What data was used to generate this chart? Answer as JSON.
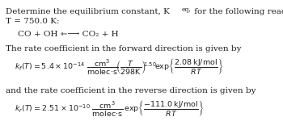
{
  "bg_color": "#ffffff",
  "text_color": "#231f20",
  "line1": "Determine the equilibrium constant, K",
  "line1_sub": "eq,",
  "line1_end": " for the following reaction at",
  "line2": "T = 750.0 K:",
  "reaction": "CO + OH ⇽⟶ CO₂ + H",
  "forward_desc": "The rate coefficient in the forward direction is given by",
  "kf_eq": "$k_f(T) = 5.4 \\times 10^{-14}\\,\\dfrac{\\mathrm{cm}^3}{\\mathrm{molec{\\cdot}s}}\\left(\\dfrac{T}{298\\mathrm{K}}\\right)^{1.50}\\!\\exp\\!\\left\\{\\dfrac{2.08\\,\\mathrm{kJ/mol}}{RT}\\right\\}$",
  "reverse_desc": "and the rate coefficient in the reverse direction is given by",
  "kr_eq": "$k_r(T) = 2.51 \\times 10^{-10}\\,\\dfrac{\\mathrm{cm}^3}{\\mathrm{molec{\\cdot}s}}\\,\\exp\\!\\left\\{\\dfrac{-111.0\\,\\mathrm{kJ/mol}}{RT}\\right\\}$",
  "fs_main": 7.5,
  "fs_sub": 5.5,
  "fs_eq": 6.8
}
